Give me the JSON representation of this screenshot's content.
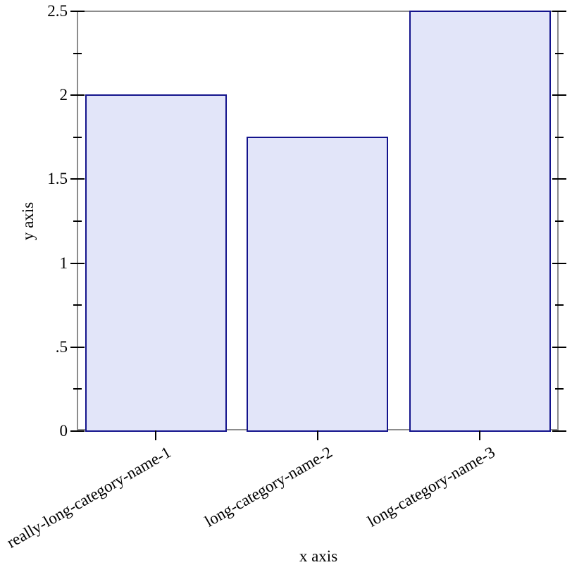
{
  "chart_data": {
    "type": "bar",
    "title": "",
    "xlabel": "x axis",
    "ylabel": "y axis",
    "categories": [
      "really-long-category-name-1",
      "long-category-name-2",
      "long-category-name-3"
    ],
    "values": [
      2,
      1.75,
      2.5
    ],
    "ylim": [
      0,
      2.5
    ],
    "y_major_ticks": [
      {
        "value": 0,
        "label": "0"
      },
      {
        "value": 0.5,
        "label": ".5"
      },
      {
        "value": 1,
        "label": "1"
      },
      {
        "value": 1.5,
        "label": "1.5"
      },
      {
        "value": 2,
        "label": "2"
      },
      {
        "value": 2.5,
        "label": "2.5"
      }
    ],
    "y_minor_ticks": [
      0.25,
      0.75,
      1.25,
      1.75,
      2.25
    ],
    "grid": false,
    "legend": "none",
    "x_tick_label_angle_deg": -30,
    "colors": {
      "bar_fill": "#e2e5f9",
      "bar_edge": "#13138c",
      "frame": "#8c8c8c",
      "tick": "#000000",
      "text": "#000000",
      "background": "#ffffff"
    }
  }
}
